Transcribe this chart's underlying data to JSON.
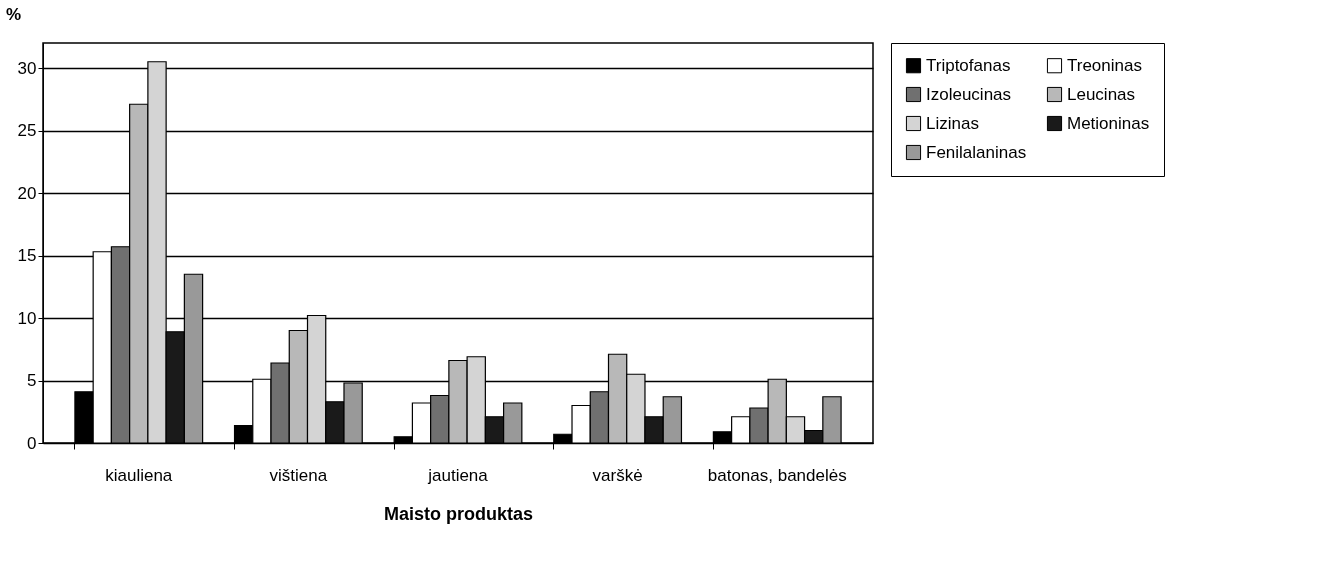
{
  "chart_data": {
    "type": "bar",
    "xlabel": "Maisto produktas",
    "ylabel": "%",
    "categories": [
      "kiauliena",
      "vištiena",
      "jautiena",
      "varškė",
      "batonas, bandelės"
    ],
    "series": [
      {
        "name": "Triptofanas",
        "color": "#000000",
        "values": [
          4.1,
          1.4,
          0.5,
          0.7,
          0.9
        ]
      },
      {
        "name": "Treoninas",
        "color": "#ffffff",
        "values": [
          15.3,
          5.1,
          3.2,
          3.0,
          2.1
        ]
      },
      {
        "name": "Izoleucinas",
        "color": "#707070",
        "values": [
          15.7,
          6.4,
          3.8,
          4.1,
          2.8
        ]
      },
      {
        "name": "Leucinas",
        "color": "#b8b8b8",
        "values": [
          27.1,
          9.0,
          6.6,
          7.1,
          5.1
        ]
      },
      {
        "name": "Lizinas",
        "color": "#d4d4d4",
        "values": [
          30.5,
          10.2,
          6.9,
          5.5,
          2.1
        ]
      },
      {
        "name": "Metioninas",
        "color": "#1a1a1a",
        "values": [
          8.9,
          3.3,
          2.1,
          2.1,
          1.0
        ]
      },
      {
        "name": "Fenilalaninas",
        "color": "#999999",
        "values": [
          13.5,
          4.8,
          3.2,
          3.7,
          3.7
        ]
      }
    ],
    "ylim": [
      0,
      32
    ],
    "yticks": [
      0,
      5,
      10,
      15,
      20,
      25,
      30
    ],
    "grid": "y",
    "legend": "right"
  }
}
